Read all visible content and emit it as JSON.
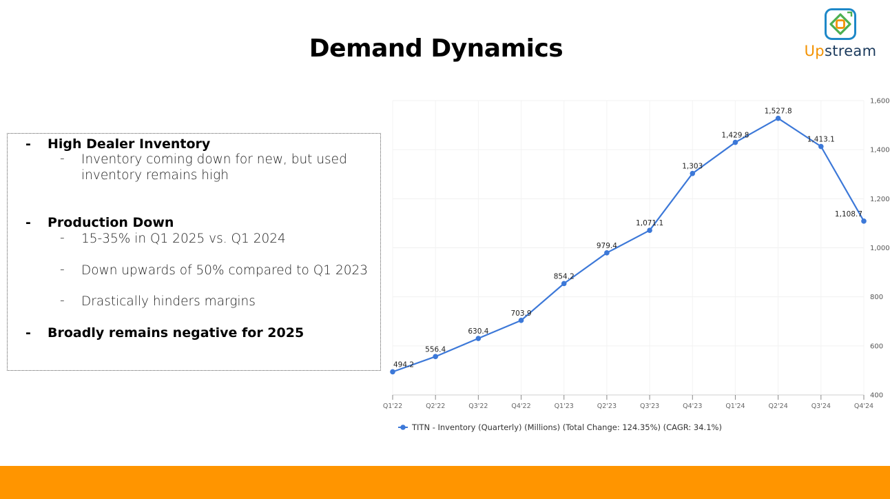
{
  "slide": {
    "title": "Demand Dynamics"
  },
  "logo": {
    "text_prefix": "Up",
    "text_suffix": "stream",
    "accent_color": "#f39200",
    "icon": "upstream-logo-icon"
  },
  "bullets": {
    "dash": "-",
    "items": [
      {
        "label": "High Dealer Inventory",
        "subitems": [
          "Inventory coming down for new, but used inventory remains high"
        ]
      },
      {
        "label": "Production Down",
        "subitems": [
          "15-35% in Q1 2025 vs. Q1 2024",
          "Down upwards of 50% compared to Q1 2023",
          "Drastically hinders margins"
        ]
      },
      {
        "label": "Broadly remains negative for 2025",
        "subitems": []
      }
    ]
  },
  "chart_data": {
    "type": "line",
    "title": "",
    "xlabel": "",
    "ylabel": "",
    "categories": [
      "Q1'22",
      "Q2'22",
      "Q3'22",
      "Q4'22",
      "Q1'23",
      "Q2'23",
      "Q3'23",
      "Q4'23",
      "Q1'24",
      "Q2'24",
      "Q3'24",
      "Q4'24"
    ],
    "series": [
      {
        "name": "TITN - Inventory (Quarterly) (Millions) (Total Change: 124.35%) (CAGR: 34.1%)",
        "values": [
          494.2,
          556.4,
          630.4,
          703.9,
          854.2,
          979.4,
          1071.1,
          1303,
          1429.8,
          1527.8,
          1413.1,
          1108.7
        ],
        "labels": [
          "494.2",
          "556.4",
          "630.4",
          "703.9",
          "854.2",
          "979.4",
          "1,071.1",
          "1,303",
          "1,429.8",
          "1,527.8",
          "1,413.1",
          "1,108.7"
        ],
        "color": "#3c78d8"
      }
    ],
    "ylim": [
      400,
      1600
    ],
    "yticks": [
      400,
      600,
      800,
      1000,
      1200,
      1400,
      1600
    ],
    "ytick_labels": [
      "400",
      "600",
      "800",
      "1,000",
      "1,200",
      "1,400",
      "1,600"
    ],
    "y_axis_side": "right",
    "grid": true,
    "legend_position": "bottom-left"
  },
  "footer": {
    "bar_color": "#ff9500"
  }
}
